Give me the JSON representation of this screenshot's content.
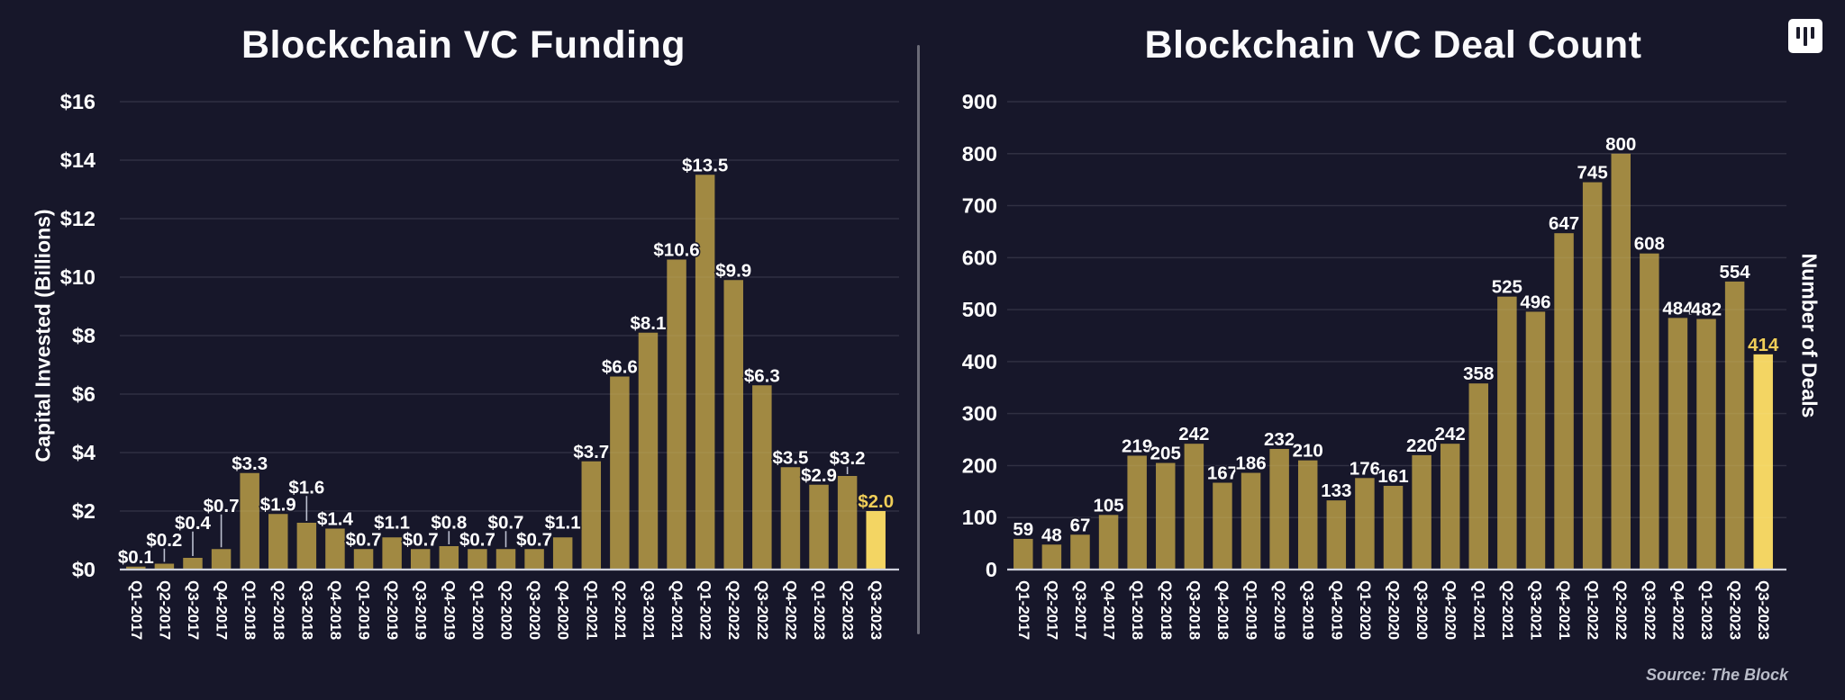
{
  "branding": {
    "source_note": "Source: The Block",
    "logo": "three-vertical-bars-logo"
  },
  "colors": {
    "background": "#17172a",
    "bar": "#a18942",
    "bar_highlight": "#f3d563",
    "value_label": "#ffffff",
    "value_label_highlight": "#f0ce58",
    "grid": "#252538",
    "grid_overlay": "rgba(255,255,255,0.05)",
    "axis_line": "#ced1dc",
    "tick_label": "#ffffff",
    "leader_line": "rgba(205,210,225,0.9)",
    "divider": "#6b6b77"
  },
  "chart_data": [
    {
      "type": "bar",
      "title": "Blockchain VC Funding",
      "y_axis_label": "Capital Invested (Billions)",
      "ylim": [
        0,
        16
      ],
      "grid": true,
      "legend": false,
      "y_tick_values": [
        0,
        2,
        4,
        6,
        8,
        10,
        12,
        14,
        16
      ],
      "y_tick_labels": [
        "$0",
        "$2",
        "$4",
        "$6",
        "$8",
        "$10",
        "$12",
        "$14",
        "$16"
      ],
      "categories": [
        "Q1-2017",
        "Q2-2017",
        "Q3-2017",
        "Q4-2017",
        "Q1-2018",
        "Q2-2018",
        "Q3-2018",
        "Q4-2018",
        "Q1-2019",
        "Q2-2019",
        "Q3-2019",
        "Q4-2019",
        "Q1-2020",
        "Q2-2020",
        "Q3-2020",
        "Q4-2020",
        "Q1-2021",
        "Q2-2021",
        "Q3-2021",
        "Q4-2021",
        "Q1-2022",
        "Q2-2022",
        "Q3-2022",
        "Q4-2022",
        "Q1-2023",
        "Q2-2023",
        "Q3-2023"
      ],
      "values": [
        0.1,
        0.2,
        0.4,
        0.7,
        3.3,
        1.9,
        1.6,
        1.4,
        0.7,
        1.1,
        0.7,
        0.8,
        0.7,
        0.7,
        0.7,
        1.1,
        3.7,
        6.6,
        8.1,
        10.6,
        13.5,
        9.9,
        6.3,
        3.5,
        2.9,
        3.2,
        2.0
      ],
      "value_labels": [
        "$0.1",
        "$0.2",
        "$0.4",
        "$0.7",
        "$3.3",
        "$1.9",
        "$1.6",
        "$1.4",
        "$0.7",
        "$1.1",
        "$0.7",
        "$0.8",
        "$0.7",
        "$0.7",
        "$0.7",
        "$1.1",
        "$3.7",
        "$6.6",
        "$8.1",
        "$10.6",
        "$13.5",
        "$9.9",
        "$6.3",
        "$3.5",
        "$2.9",
        "$3.2",
        "$2.0"
      ],
      "highlighted_category": "Q3-2023"
    },
    {
      "type": "bar",
      "title": "Blockchain VC Deal Count",
      "y_axis_label": "Number of Deals",
      "ylim": [
        0,
        900
      ],
      "grid": true,
      "legend": false,
      "y_tick_values": [
        0,
        100,
        200,
        300,
        400,
        500,
        600,
        700,
        800,
        900
      ],
      "y_tick_labels": [
        "0",
        "100",
        "200",
        "300",
        "400",
        "500",
        "600",
        "700",
        "800",
        "900"
      ],
      "categories": [
        "Q1-2017",
        "Q2-2017",
        "Q3-2017",
        "Q4-2017",
        "Q1-2018",
        "Q2-2018",
        "Q3-2018",
        "Q4-2018",
        "Q1-2019",
        "Q2-2019",
        "Q3-2019",
        "Q4-2019",
        "Q1-2020",
        "Q2-2020",
        "Q3-2020",
        "Q4-2020",
        "Q1-2021",
        "Q2-2021",
        "Q3-2021",
        "Q4-2021",
        "Q1-2022",
        "Q2-2022",
        "Q3-2022",
        "Q4-2022",
        "Q1-2023",
        "Q2-2023",
        "Q3-2023"
      ],
      "values": [
        59,
        48,
        67,
        105,
        219,
        205,
        242,
        167,
        186,
        232,
        210,
        133,
        176,
        161,
        220,
        242,
        358,
        525,
        496,
        647,
        745,
        800,
        608,
        484,
        482,
        554,
        414
      ],
      "value_labels": [
        "59",
        "48",
        "67",
        "105",
        "219",
        "205",
        "242",
        "167",
        "186",
        "232",
        "210",
        "133",
        "176",
        "161",
        "220",
        "242",
        "358",
        "525",
        "496",
        "647",
        "745",
        "800",
        "608",
        "484",
        "482",
        "554",
        "414"
      ],
      "highlighted_category": "Q3-2023"
    }
  ]
}
